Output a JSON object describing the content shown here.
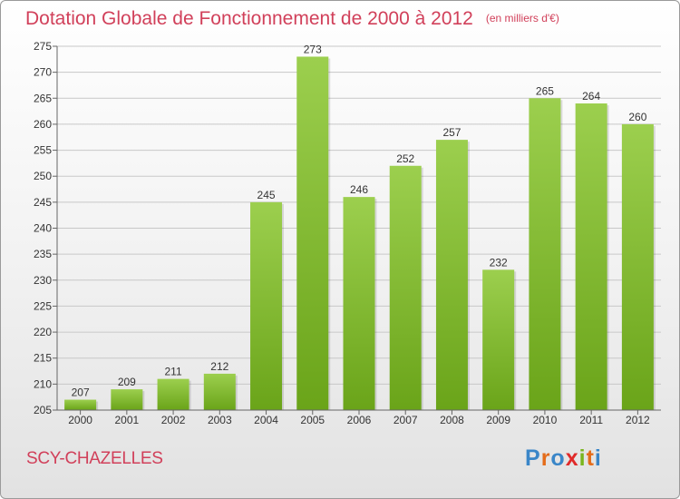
{
  "header": {
    "title": "Dotation Globale de Fonctionnement de 2000 à 2012",
    "unit": "(en milliers d'€)"
  },
  "footer": {
    "commune": "SCY-CHAZELLES",
    "logo": {
      "letters": [
        "P",
        "r",
        "o",
        "x",
        "i",
        "t",
        "i"
      ],
      "colors": [
        "#3a86c8",
        "#e46c1a",
        "#3a86c8",
        "#e02a2a",
        "#7ab51d",
        "#e46c1a",
        "#3a86c8"
      ]
    }
  },
  "colors": {
    "bar_light": "#9ccf4e",
    "bar_dark": "#6aa419",
    "grid": "#c8c8c8",
    "title": "#d1405a"
  },
  "chart_data": {
    "type": "bar",
    "title": "Dotation Globale de Fonctionnement de 2000 à 2012",
    "subtitle": "(en milliers d'€)",
    "categories": [
      "2000",
      "2001",
      "2002",
      "2003",
      "2004",
      "2005",
      "2006",
      "2007",
      "2008",
      "2009",
      "2010",
      "2011",
      "2012"
    ],
    "values": [
      207,
      209,
      211,
      212,
      245,
      273,
      246,
      252,
      257,
      232,
      265,
      264,
      260
    ],
    "ylim": [
      205,
      275
    ],
    "yticks": [
      205,
      210,
      215,
      220,
      225,
      230,
      235,
      240,
      245,
      250,
      255,
      260,
      265,
      270,
      275
    ],
    "grid": true,
    "data_labels": true
  }
}
